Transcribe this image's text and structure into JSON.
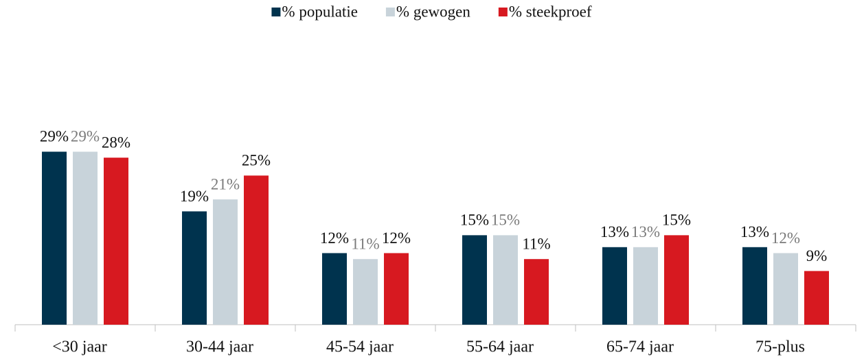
{
  "chart_data": {
    "type": "bar",
    "categories": [
      "<30 jaar",
      "30-44 jaar",
      "45-54 jaar",
      "55-64 jaar",
      "65-74 jaar",
      "75-plus"
    ],
    "series": [
      {
        "name": "% populatie",
        "color": "#00334e",
        "label_color": "#111111",
        "values": [
          29,
          19,
          12,
          15,
          13,
          13
        ],
        "value_labels": [
          "29%",
          "19%",
          "12%",
          "15%",
          "13%",
          "13%"
        ]
      },
      {
        "name": "% gewogen",
        "color": "#c8d3da",
        "label_color": "#7a7a7a",
        "values": [
          29,
          21,
          11,
          15,
          13,
          12
        ],
        "value_labels": [
          "29%",
          "21%",
          "11%",
          "15%",
          "13%",
          "12%"
        ]
      },
      {
        "name": "% steekproef",
        "color": "#d71920",
        "label_color": "#111111",
        "values": [
          28,
          25,
          12,
          11,
          15,
          9
        ],
        "value_labels": [
          "28%",
          "25%",
          "12%",
          "11%",
          "15%",
          "9%"
        ]
      }
    ],
    "ylim": [
      0,
      48
    ],
    "legend": "top"
  }
}
